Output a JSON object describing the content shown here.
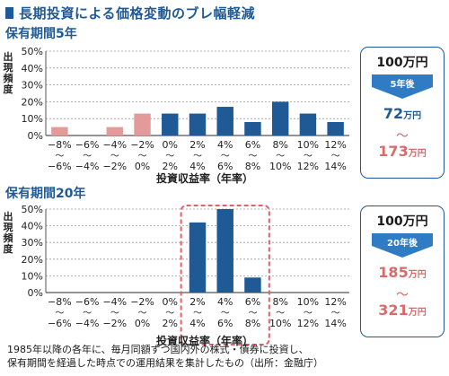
{
  "title": "長期投資による価格変動のブレ幅軽減",
  "chart_data": [
    {
      "type": "bar",
      "title": "保有期間5年",
      "ylabel": "出現頻度",
      "xlabel": "投資収益率（年率）",
      "ylim": [
        0,
        50
      ],
      "yticks": [
        "0%",
        "10%",
        "20%",
        "30%",
        "40%",
        "50%"
      ],
      "categories": [
        [
          "−8%",
          "〜",
          "−6%"
        ],
        [
          "−6%",
          "〜",
          "−4%"
        ],
        [
          "−4%",
          "〜",
          "−2%"
        ],
        [
          "−2%",
          "〜",
          "0%"
        ],
        [
          "0%",
          "〜",
          "2%"
        ],
        [
          "2%",
          "〜",
          "4%"
        ],
        [
          "4%",
          "〜",
          "6%"
        ],
        [
          "6%",
          "〜",
          "8%"
        ],
        [
          "8%",
          "〜",
          "10%"
        ],
        [
          "10%",
          "〜",
          "12%"
        ],
        [
          "12%",
          "〜",
          "14%"
        ]
      ],
      "values": [
        5,
        0,
        5,
        13,
        13,
        13,
        17,
        8,
        20,
        13,
        8
      ],
      "colors": [
        "#e59a9a",
        "#e59a9a",
        "#e59a9a",
        "#e59a9a",
        "#1f5a96",
        "#1f5a96",
        "#1f5a96",
        "#1f5a96",
        "#1f5a96",
        "#1f5a96",
        "#1f5a96"
      ],
      "grid": true
    },
    {
      "type": "bar",
      "title": "保有期間20年",
      "ylabel": "出現頻度",
      "xlabel": "投資収益率（年率）",
      "ylim": [
        0,
        50
      ],
      "yticks": [
        "0%",
        "10%",
        "20%",
        "30%",
        "40%",
        "50%"
      ],
      "categories": [
        [
          "−8%",
          "〜",
          "−6%"
        ],
        [
          "−6%",
          "〜",
          "−4%"
        ],
        [
          "−4%",
          "〜",
          "−2%"
        ],
        [
          "−2%",
          "〜",
          "0%"
        ],
        [
          "0%",
          "〜",
          "2%"
        ],
        [
          "2%",
          "〜",
          "4%"
        ],
        [
          "4%",
          "〜",
          "6%"
        ],
        [
          "6%",
          "〜",
          "8%"
        ],
        [
          "8%",
          "〜",
          "10%"
        ],
        [
          "10%",
          "〜",
          "12%"
        ],
        [
          "12%",
          "〜",
          "14%"
        ]
      ],
      "values": [
        0,
        0,
        0,
        0,
        0,
        42,
        50,
        9,
        0,
        0,
        0
      ],
      "colors": [
        "#1f5a96",
        "#1f5a96",
        "#1f5a96",
        "#1f5a96",
        "#1f5a96",
        "#1f5a96",
        "#1f5a96",
        "#1f5a96",
        "#1f5a96",
        "#1f5a96",
        "#1f5a96"
      ],
      "highlight_range": [
        5,
        7
      ],
      "highlight_color": "#e06070",
      "grid": true
    }
  ],
  "box5": {
    "start": "100万円",
    "years": "5年後",
    "low_num": "72",
    "low_unit": "万円",
    "tilde": "〜",
    "high_num": "173",
    "high_unit": "万円"
  },
  "box20": {
    "start": "100万円",
    "years": "20年後",
    "low_num": "185",
    "low_unit": "万円",
    "tilde": "〜",
    "high_num": "321",
    "high_unit": "万円"
  },
  "footnote": [
    "1985年以降の各年に、毎月同額ずつ国内外の株式・債券に投資し、",
    "保有期間を経過した時点での運用結果を集計したもの（出所：金融庁）"
  ],
  "colors": {
    "accent": "#1f5a96",
    "negative": "#e59a9a",
    "highlight": "#e06070"
  }
}
